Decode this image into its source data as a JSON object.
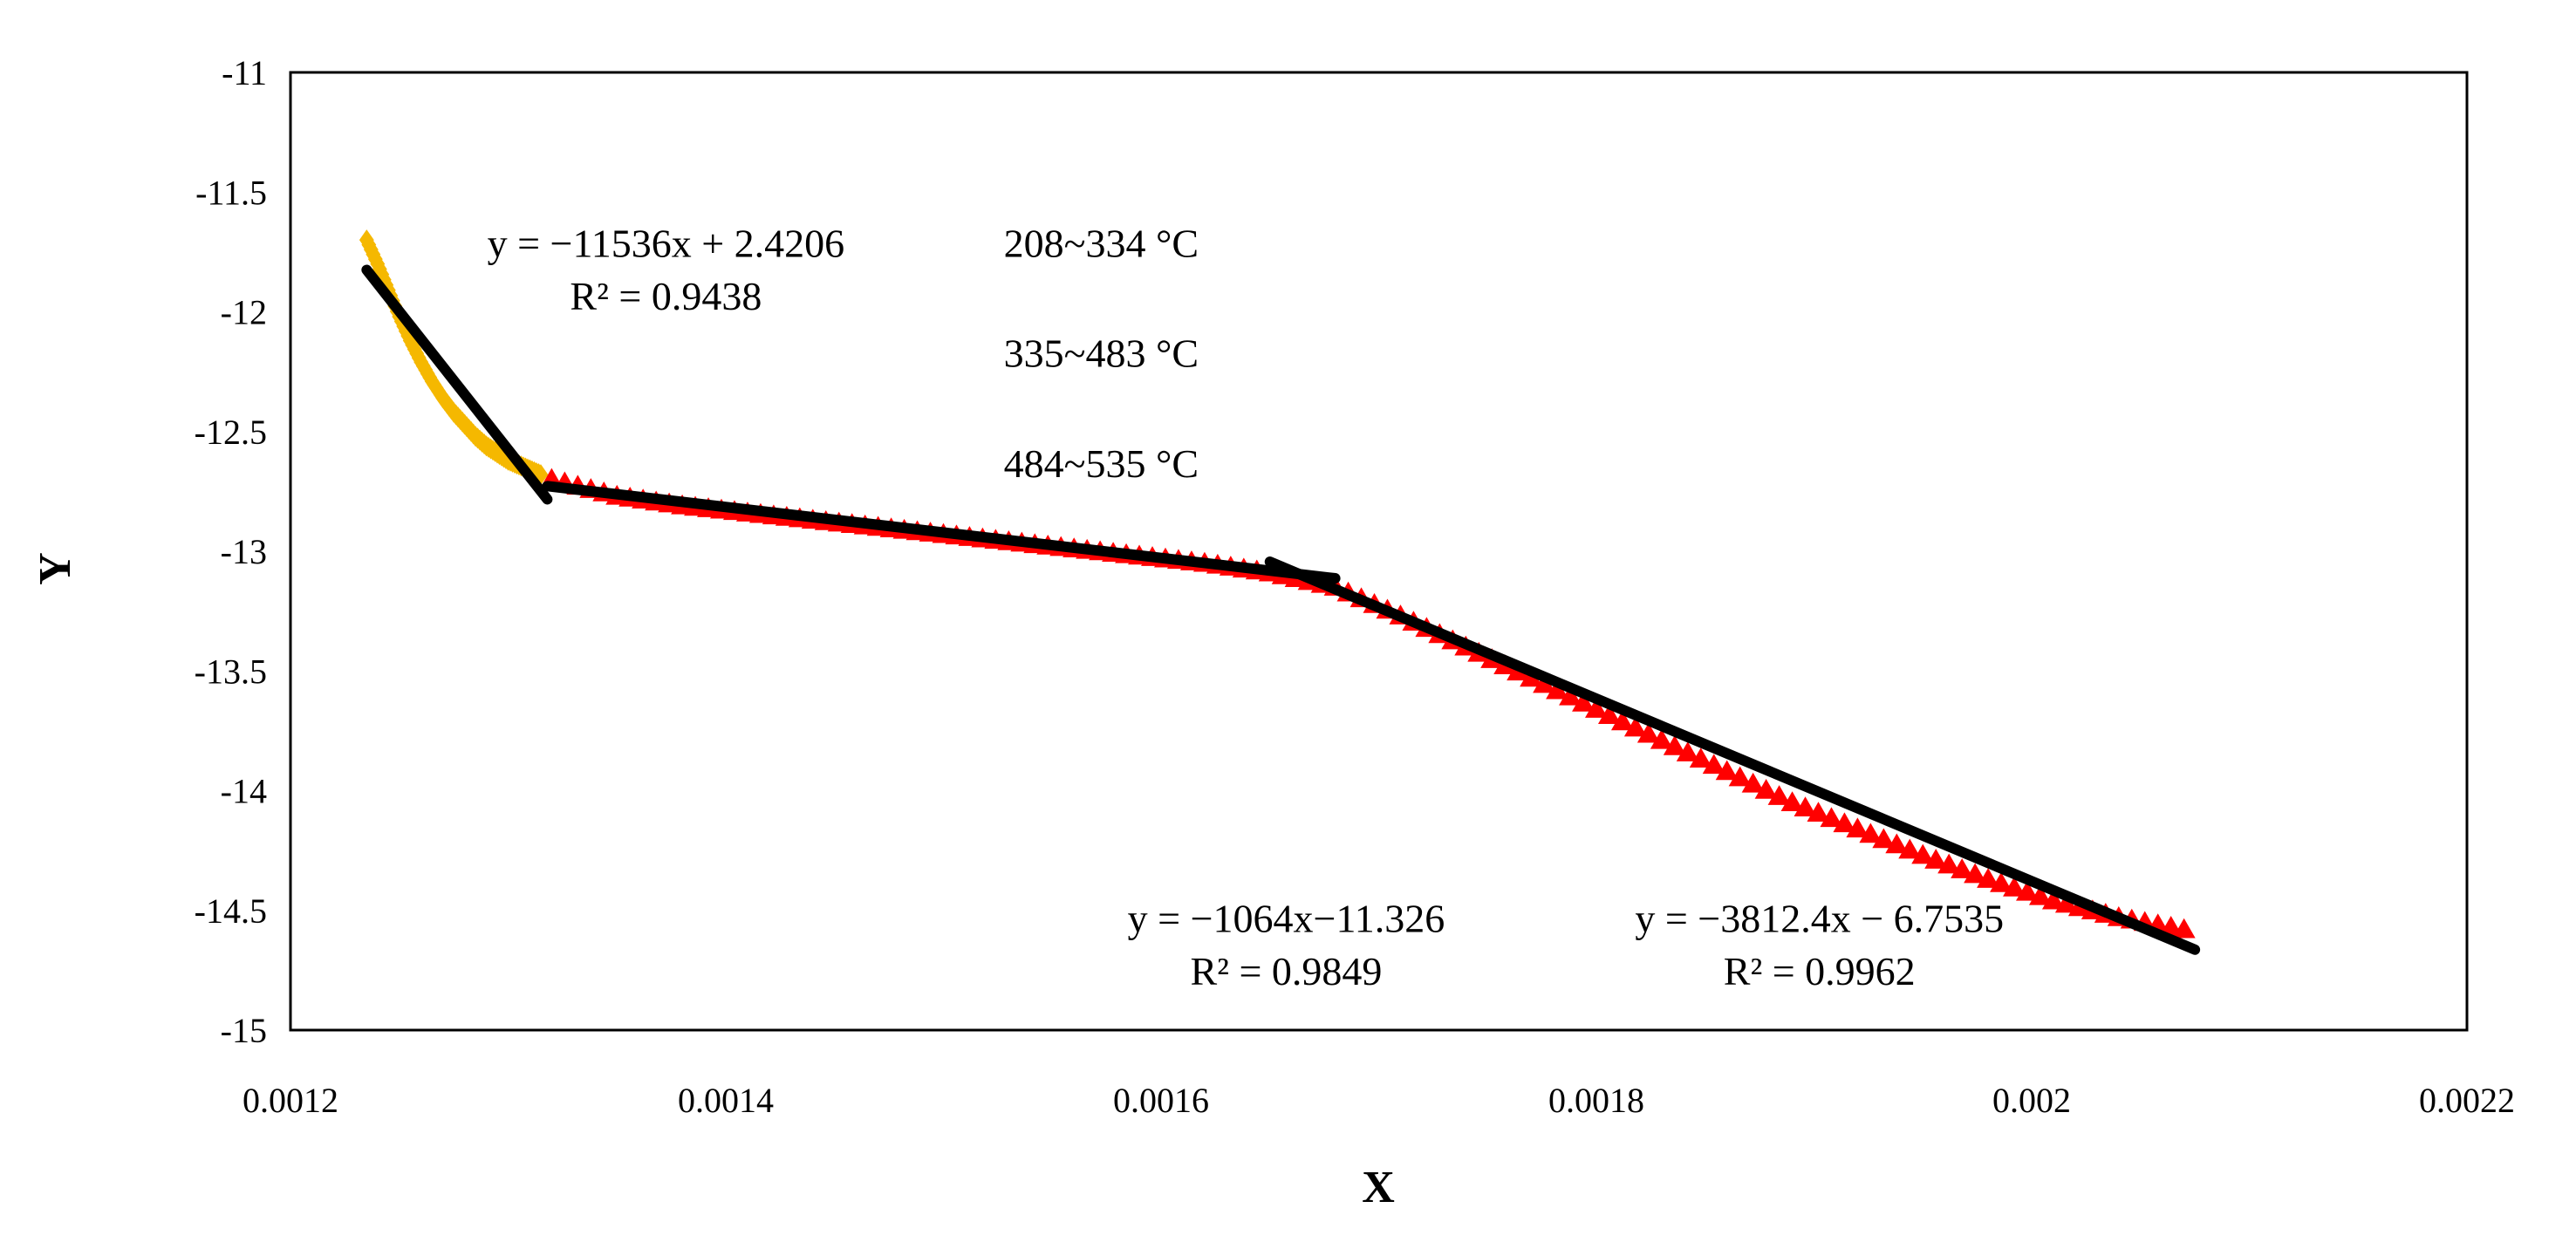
{
  "chart_data": {
    "type": "scatter",
    "title": "",
    "xlabel": "X",
    "ylabel": "Y",
    "xlim": [
      0.0012,
      0.0022
    ],
    "ylim": [
      -15,
      -11
    ],
    "x_ticks": [
      0.0012,
      0.0014,
      0.0016,
      0.0018,
      0.002,
      0.0022
    ],
    "y_ticks": [
      -11,
      -11.5,
      -12,
      -12.5,
      -13,
      -13.5,
      -14,
      -14.5,
      -15
    ],
    "x_tick_labels": [
      "0.0012",
      "0.0014",
      "0.0016",
      "0.0018",
      "0.002",
      "0.0022"
    ],
    "y_tick_labels": [
      "-11",
      "-11.5",
      "-12",
      "-12.5",
      "-13",
      "-13.5",
      "-14",
      "-14.5",
      "-15"
    ],
    "grid": false,
    "series": [
      {
        "color": "#F5B800",
        "marker": "diamond",
        "x": [
          0.001235,
          0.00124,
          0.001245,
          0.00125,
          0.001255,
          0.00126,
          0.001265,
          0.00127,
          0.001275,
          0.00128,
          0.001285,
          0.00129,
          0.001295,
          0.0013,
          0.001305,
          0.00131,
          0.001315
        ],
        "y": [
          -11.7,
          -11.8,
          -11.91,
          -12.02,
          -12.12,
          -12.21,
          -12.29,
          -12.36,
          -12.42,
          -12.47,
          -12.52,
          -12.56,
          -12.59,
          -12.62,
          -12.64,
          -12.66,
          -12.68
        ]
      },
      {
        "color": "#FF0000",
        "marker": "triangle",
        "x": [
          0.00132,
          0.00135,
          0.00138,
          0.00141,
          0.00144,
          0.00147,
          0.0015,
          0.00153,
          0.00156,
          0.00159,
          0.00162,
          0.00165,
          0.00168,
          0.00171,
          0.00174,
          0.00177,
          0.0018,
          0.00183,
          0.00186,
          0.00189,
          0.00192,
          0.00195,
          0.00198,
          0.00201,
          0.00204,
          0.00207
        ],
        "y": [
          -12.7,
          -12.77,
          -12.81,
          -12.84,
          -12.87,
          -12.9,
          -12.93,
          -12.96,
          -12.99,
          -13.02,
          -13.05,
          -13.09,
          -13.15,
          -13.27,
          -13.4,
          -13.53,
          -13.66,
          -13.79,
          -13.92,
          -14.05,
          -14.16,
          -14.27,
          -14.37,
          -14.46,
          -14.53,
          -14.58
        ]
      }
    ],
    "fit_lines": [
      {
        "x": [
          0.001235,
          0.001318
        ],
        "y": [
          -11.825,
          -12.783
        ]
      },
      {
        "x": [
          0.001318,
          0.00168
        ],
        "y": [
          -12.728,
          -13.113
        ]
      },
      {
        "x": [
          0.00165,
          0.002075
        ],
        "y": [
          -13.044,
          -14.664
        ]
      }
    ],
    "annotations": [
      {
        "text": "y = −11536x + 2.4206",
        "x": 0.001545,
        "y": -11.77
      },
      {
        "text": "R² = 0.9438",
        "x": 0.001545,
        "y": -11.99
      },
      {
        "text": "208~334 °C",
        "x": 0.001945,
        "y": -11.77
      },
      {
        "text": "335~483 °C",
        "x": 0.001945,
        "y": -12.23
      },
      {
        "text": "484~535 °C",
        "x": 0.001945,
        "y": -12.69
      },
      {
        "text": "y = −1064x−11.326",
        "x": 0.002115,
        "y": -14.59
      },
      {
        "text": "R² = 0.9849",
        "x": 0.002115,
        "y": -14.81
      },
      {
        "text": "y = −3812.4x − 6.7535",
        "x": 0.002605,
        "y": -14.59
      },
      {
        "text": "R² = 0.9962",
        "x": 0.002605,
        "y": -14.81
      }
    ]
  }
}
